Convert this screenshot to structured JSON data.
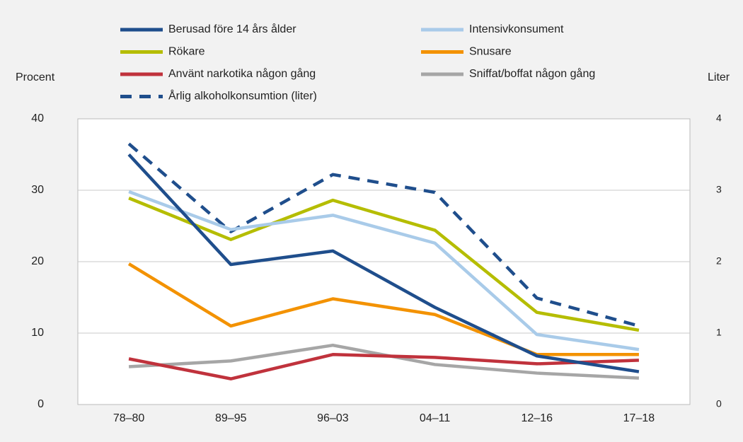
{
  "chart_data": {
    "type": "line",
    "y_label": "Procent",
    "y2_label": "Liter",
    "categories": [
      "78–80",
      "89–95",
      "96–03",
      "04–11",
      "12–16",
      "17–18"
    ],
    "series": [
      {
        "name": "Berusad före 14 års ålder",
        "color": "#1f4e8c",
        "values": [
          35,
          19.6,
          21.5,
          13.6,
          6.8,
          4.6
        ]
      },
      {
        "name": "Intensivkonsument",
        "color": "#a9cbe9",
        "values": [
          29.8,
          24.5,
          26.5,
          22.6,
          9.8,
          7.7
        ]
      },
      {
        "name": "Rökare",
        "color": "#b5bd00",
        "values": [
          28.9,
          23.1,
          28.6,
          24.4,
          12.9,
          10.4
        ]
      },
      {
        "name": "Snusare",
        "color": "#f39200",
        "values": [
          19.7,
          11.0,
          14.8,
          12.6,
          7.0,
          7.0
        ]
      },
      {
        "name": "Använt narkotika någon gång",
        "color": "#c0323c",
        "values": [
          6.4,
          3.6,
          7.0,
          6.6,
          5.7,
          6.2
        ]
      },
      {
        "name": "Sniffat/boffat någon gång",
        "color": "#a6a6a6",
        "values": [
          5.3,
          6.1,
          8.3,
          5.6,
          4.4,
          3.7
        ]
      },
      {
        "name": "Årlig alkoholkonsumtion (liter)",
        "color": "#1f4e8c",
        "dashed": true,
        "axis": "y2",
        "values": [
          3.65,
          2.42,
          3.22,
          2.97,
          1.49,
          1.1
        ]
      }
    ],
    "ylim": [
      0,
      40
    ],
    "yticks": [
      0,
      10,
      20,
      30,
      40
    ],
    "y2lim": [
      0,
      4
    ],
    "y2ticks": [
      0,
      1,
      2,
      3,
      4
    ],
    "grid": true
  }
}
